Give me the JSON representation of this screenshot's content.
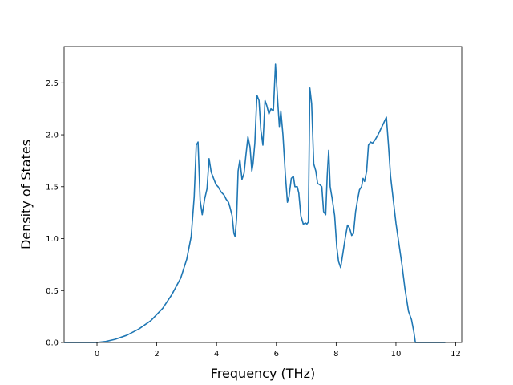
{
  "chart_data": {
    "type": "line",
    "title": "",
    "xlabel": "Frequency (THz)",
    "ylabel": "Density of States",
    "xlim": [
      -1.1,
      12.2
    ],
    "ylim": [
      0.0,
      2.85
    ],
    "xticks": [
      0,
      2,
      4,
      6,
      8,
      10,
      12
    ],
    "xtick_labels": [
      "0",
      "2",
      "4",
      "6",
      "8",
      "10",
      "12"
    ],
    "yticks": [
      0.0,
      0.5,
      1.0,
      1.5,
      2.0,
      2.5
    ],
    "ytick_labels": [
      "0.0",
      "0.5",
      "1.0",
      "1.5",
      "2.0",
      "2.5"
    ],
    "grid": false,
    "legend": "none",
    "colors": {
      "line": "#1f77b4",
      "axes": "#000000",
      "background": "#ffffff"
    },
    "series": [
      {
        "x": [
          -1.1,
          -0.5,
          0.0,
          0.3,
          0.6,
          1.0,
          1.4,
          1.8,
          2.2,
          2.5,
          2.8,
          3.0,
          3.15,
          3.25,
          3.32,
          3.38,
          3.45,
          3.52,
          3.6,
          3.68,
          3.75,
          3.82,
          3.9,
          3.98,
          4.05,
          4.15,
          4.25,
          4.32,
          4.4,
          4.45,
          4.52,
          4.58,
          4.62,
          4.67,
          4.72,
          4.78,
          4.85,
          4.92,
          4.98,
          5.05,
          5.12,
          5.18,
          5.22,
          5.28,
          5.35,
          5.42,
          5.48,
          5.55,
          5.62,
          5.68,
          5.75,
          5.82,
          5.9,
          5.97,
          6.05,
          6.1,
          6.15,
          6.22,
          6.3,
          6.37,
          6.42,
          6.5,
          6.57,
          6.62,
          6.7,
          6.75,
          6.82,
          6.9,
          6.98,
          7.02,
          7.07,
          7.12,
          7.18,
          7.25,
          7.32,
          7.38,
          7.45,
          7.52,
          7.58,
          7.65,
          7.7,
          7.75,
          7.8,
          7.87,
          7.95,
          8.02,
          8.08,
          8.15,
          8.22,
          8.3,
          8.38,
          8.45,
          8.52,
          8.58,
          8.65,
          8.72,
          8.78,
          8.85,
          8.9,
          8.95,
          9.02,
          9.08,
          9.15,
          9.22,
          9.3,
          9.4,
          9.5,
          9.6,
          9.68,
          9.75,
          9.82,
          9.9,
          10.0,
          10.1,
          10.2,
          10.3,
          10.42,
          10.52,
          10.6,
          10.65,
          11.0,
          11.65
        ],
        "y": [
          0.0,
          0.0,
          0.0,
          0.01,
          0.03,
          0.07,
          0.13,
          0.21,
          0.33,
          0.46,
          0.62,
          0.8,
          1.02,
          1.4,
          1.9,
          1.93,
          1.37,
          1.23,
          1.38,
          1.48,
          1.77,
          1.64,
          1.58,
          1.52,
          1.5,
          1.45,
          1.42,
          1.38,
          1.35,
          1.3,
          1.22,
          1.05,
          1.02,
          1.2,
          1.65,
          1.76,
          1.57,
          1.63,
          1.8,
          1.98,
          1.88,
          1.65,
          1.72,
          1.92,
          2.38,
          2.33,
          2.05,
          1.9,
          2.33,
          2.28,
          2.2,
          2.25,
          2.23,
          2.68,
          2.3,
          2.08,
          2.23,
          2.0,
          1.62,
          1.35,
          1.4,
          1.58,
          1.6,
          1.5,
          1.5,
          1.44,
          1.22,
          1.14,
          1.15,
          1.14,
          1.16,
          2.45,
          2.3,
          1.72,
          1.65,
          1.53,
          1.52,
          1.5,
          1.26,
          1.23,
          1.6,
          1.85,
          1.5,
          1.38,
          1.22,
          0.92,
          0.78,
          0.72,
          0.85,
          1.0,
          1.13,
          1.1,
          1.03,
          1.05,
          1.26,
          1.38,
          1.47,
          1.5,
          1.58,
          1.55,
          1.65,
          1.9,
          1.93,
          1.92,
          1.95,
          2.0,
          2.06,
          2.12,
          2.17,
          1.9,
          1.6,
          1.4,
          1.15,
          0.95,
          0.75,
          0.52,
          0.3,
          0.22,
          0.1,
          0.0,
          0.0,
          0.0
        ]
      }
    ]
  }
}
